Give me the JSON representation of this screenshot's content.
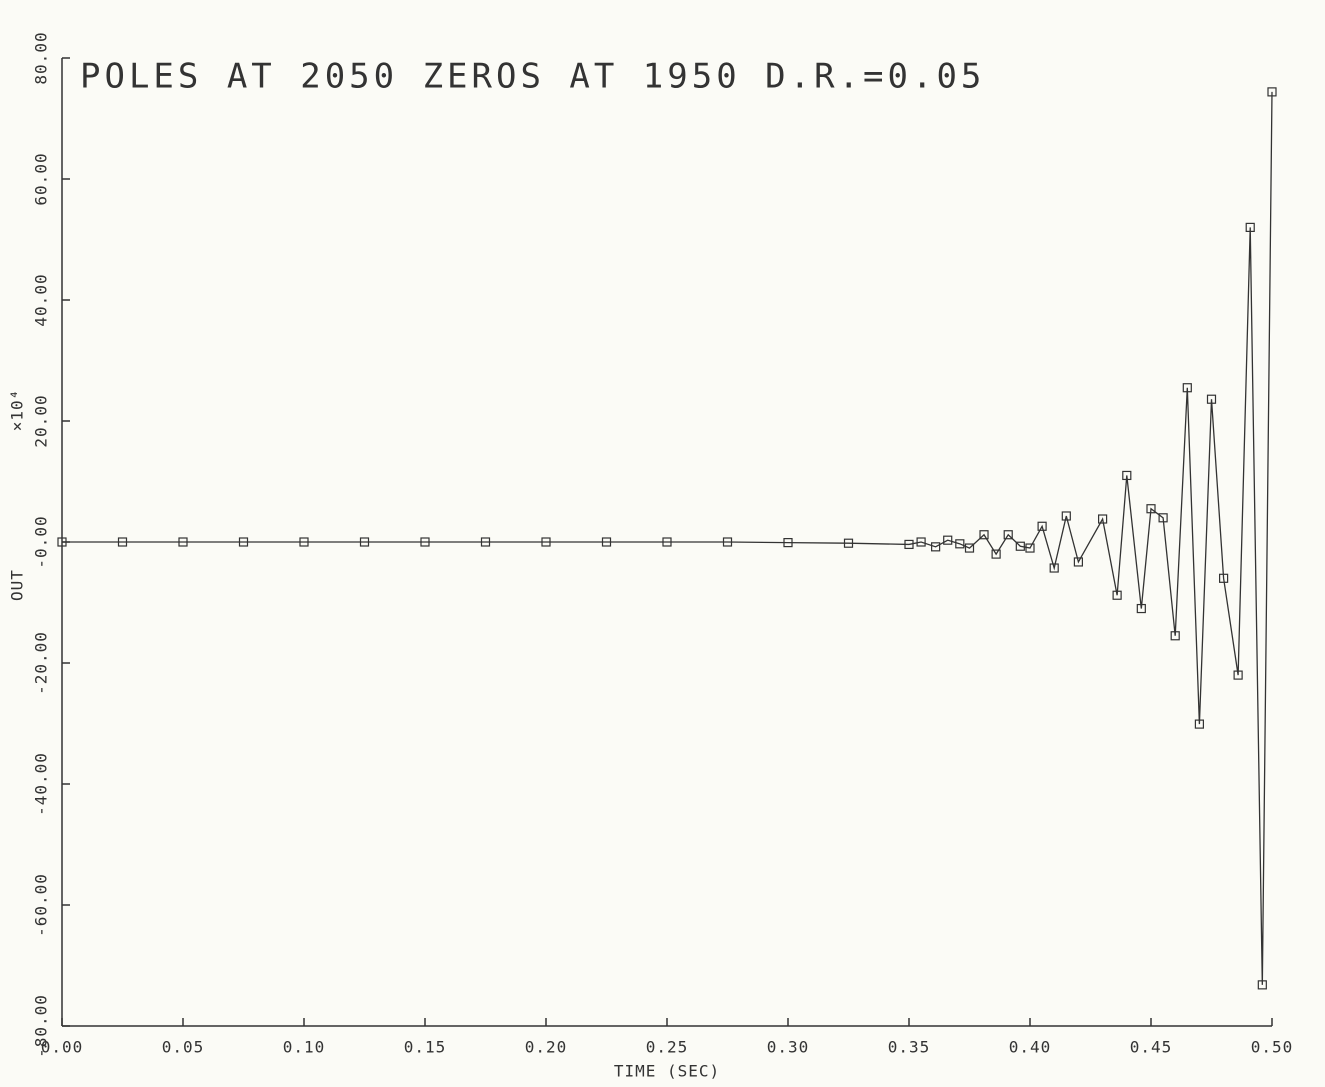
{
  "chart_data": {
    "type": "line",
    "title": "POLES AT 2050 ZEROS AT 1950 D.R.=0.05",
    "xlabel": "TIME (SEC)",
    "ylabel": "OUT",
    "y_multiplier": "×10⁴",
    "color": "#333333",
    "x": [
      0,
      0.025,
      0.05,
      0.075,
      0.1,
      0.125,
      0.15,
      0.175,
      0.2,
      0.225,
      0.25,
      0.275,
      0.3,
      0.325,
      0.35,
      0.355,
      0.361,
      0.366,
      0.371,
      0.375,
      0.381,
      0.386,
      0.391,
      0.396,
      0.4,
      0.405,
      0.41,
      0.415,
      0.42,
      0.43,
      0.436,
      0.44,
      0.446,
      0.45,
      0.455,
      0.46,
      0.465,
      0.47,
      0.475,
      0.48,
      0.486,
      0.491,
      0.496,
      0.5
    ],
    "values": [
      0,
      0,
      0,
      0,
      0,
      0,
      0,
      0,
      0,
      0,
      0,
      0,
      -0.1,
      -0.2,
      -0.4,
      0,
      -0.8,
      0.3,
      -0.3,
      -1,
      1.2,
      -2,
      1.2,
      -0.7,
      -1,
      2.6,
      -4.3,
      4.3,
      -3.3,
      3.8,
      -8.8,
      11,
      -11,
      5.5,
      4,
      -15.5,
      25.5,
      -30.1,
      23.6,
      -6,
      -22,
      52,
      -73.2,
      74.4
    ],
    "xlim": [
      0,
      0.5
    ],
    "xticks": [
      {
        "value": 0,
        "label": "0.00"
      },
      {
        "value": 0.05,
        "label": "0.05"
      },
      {
        "value": 0.1,
        "label": "0.10"
      },
      {
        "value": 0.15,
        "label": "0.15"
      },
      {
        "value": 0.2,
        "label": "0.20"
      },
      {
        "value": 0.25,
        "label": "0.25"
      },
      {
        "value": 0.3,
        "label": "0.30"
      },
      {
        "value": 0.35,
        "label": "0.35"
      },
      {
        "value": 0.4,
        "label": "0.40"
      },
      {
        "value": 0.45,
        "label": "0.45"
      },
      {
        "value": 0.5,
        "label": "0.50"
      }
    ],
    "ylim": [
      -80,
      80
    ],
    "yticks": [
      {
        "value": -80,
        "label": "-80.00"
      },
      {
        "value": -60,
        "label": "-60.00"
      },
      {
        "value": -40,
        "label": "-40.00"
      },
      {
        "value": -20,
        "label": "-20.00"
      },
      {
        "value": 0,
        "label": "-0.00"
      },
      {
        "value": 20,
        "label": "20.00"
      },
      {
        "value": 40,
        "label": "40.00"
      },
      {
        "value": 60,
        "label": "60.00"
      },
      {
        "value": 80,
        "label": "80.00"
      }
    ]
  }
}
